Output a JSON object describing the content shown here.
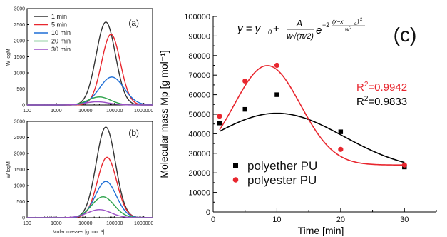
{
  "chart_data": [
    {
      "panel": "(a)",
      "type": "line",
      "ylabel": "W logM",
      "xlabel": "",
      "x_scale": "log",
      "xlim": [
        100,
        2000000
      ],
      "ylim": [
        0,
        3000
      ],
      "yticks": [
        0,
        500,
        1000,
        1500,
        2000,
        2500,
        3000
      ],
      "xtick_labels": [
        "100",
        "1000",
        "10000",
        "100000",
        "1000000"
      ],
      "legend_position": "top-left",
      "series": [
        {
          "name": "1 min",
          "color": "#333333",
          "peak_x": 50000,
          "peak_y": 2580,
          "width_log": 0.33
        },
        {
          "name": "5 min",
          "color": "#e8262e",
          "peak_x": 75000,
          "peak_y": 2200,
          "width_log": 0.32
        },
        {
          "name": "10 min",
          "color": "#1f6fd6",
          "peak_x": 80000,
          "peak_y": 870,
          "width_log": 0.42
        },
        {
          "name": "20 min",
          "color": "#2ca24a",
          "peak_x": 30000,
          "peak_y": 250,
          "width_log": 0.38
        },
        {
          "name": "30 min",
          "color": "#9b4fc6",
          "peak_x": 25000,
          "peak_y": 100,
          "width_log": 0.4
        }
      ]
    },
    {
      "panel": "(b)",
      "type": "line",
      "ylabel": "W logM",
      "xlabel": "Molar masses [g mol⁻¹]",
      "x_scale": "log",
      "xlim": [
        100,
        2000000
      ],
      "ylim": [
        0,
        3000
      ],
      "yticks": [
        0,
        500,
        1000,
        1500,
        2000,
        2500,
        3000
      ],
      "xtick_labels": [
        "100",
        "1000",
        "10000",
        "100000",
        "1000000"
      ],
      "series": [
        {
          "name": "1 min",
          "color": "#333333",
          "peak_x": 50000,
          "peak_y": 2820,
          "width_log": 0.33
        },
        {
          "name": "5 min",
          "color": "#e8262e",
          "peak_x": 55000,
          "peak_y": 1880,
          "width_log": 0.33
        },
        {
          "name": "10 min",
          "color": "#1f6fd6",
          "peak_x": 50000,
          "peak_y": 1130,
          "width_log": 0.36
        },
        {
          "name": "20 min",
          "color": "#2ca24a",
          "peak_x": 40000,
          "peak_y": 650,
          "width_log": 0.38
        },
        {
          "name": "30 min",
          "color": "#9b4fc6",
          "peak_x": 30000,
          "peak_y": 250,
          "width_log": 0.4
        }
      ]
    },
    {
      "panel": "(c)",
      "type": "scatter",
      "xlabel": "Time [min]",
      "ylabel": "Molecular mass Mp [g mol⁻¹]",
      "xlim": [
        0,
        35
      ],
      "ylim": [
        0,
        100000
      ],
      "xticks": [
        0,
        10,
        20,
        30
      ],
      "yticks": [
        0,
        10000,
        20000,
        30000,
        40000,
        50000,
        60000,
        70000,
        80000,
        90000,
        100000
      ],
      "legend_position": "bottom-center",
      "equation_segments": [
        "y = y",
        "0",
        " + ",
        "A",
        "w√(π/2)",
        "e",
        "−2",
        "(x−x",
        "c",
        ")",
        "2",
        "w",
        "2"
      ],
      "series": [
        {
          "name": "polyether PU",
          "marker": "square",
          "color": "#000000",
          "x": [
            1,
            5,
            10,
            20,
            30
          ],
          "y": [
            45500,
            52500,
            60000,
            41000,
            23000
          ],
          "fit": {
            "y0": 20500,
            "A": 786000,
            "w": 20.9,
            "xc": 10
          },
          "r2_prefix": "R",
          "r2_sup": "2",
          "r2_value": "=0.9833"
        },
        {
          "name": "polyester PU",
          "marker": "circle",
          "color": "#e8262e",
          "x": [
            1,
            5,
            10,
            20,
            30
          ],
          "y": [
            49000,
            67000,
            75000,
            32000,
            24000
          ],
          "fit": {
            "y0": 24000,
            "A": 663000,
            "w": 10.4,
            "xc": 8.5
          },
          "r2_prefix": "R",
          "r2_sup": "2",
          "r2_value": "=0.9942"
        }
      ]
    }
  ]
}
